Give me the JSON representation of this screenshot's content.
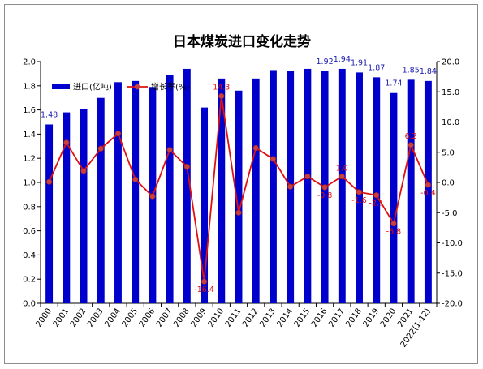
{
  "chart_data": {
    "type": "bar+line",
    "title": "日本煤炭进口变化走势",
    "categories": [
      "2000",
      "2001",
      "2002",
      "2003",
      "2004",
      "2005",
      "2006",
      "2007",
      "2008",
      "2009",
      "2010",
      "2011",
      "2012",
      "2013",
      "2014",
      "2015",
      "2016",
      "2017",
      "2018",
      "2019",
      "2020",
      "2021",
      "2022(1-12)"
    ],
    "series": [
      {
        "name": "进口(亿吨)",
        "type": "bar",
        "axis": "left",
        "color": "#0000cc",
        "values": [
          1.48,
          1.58,
          1.61,
          1.7,
          1.83,
          1.84,
          1.79,
          1.89,
          1.94,
          1.62,
          1.86,
          1.76,
          1.86,
          1.93,
          1.92,
          1.94,
          1.92,
          1.94,
          1.91,
          1.87,
          1.74,
          1.85,
          1.84
        ]
      },
      {
        "name": "增长率(%)",
        "type": "line",
        "axis": "right",
        "color": "#e01010",
        "values": [
          0.1,
          6.6,
          1.9,
          5.6,
          8.1,
          0.5,
          -2.3,
          5.4,
          2.6,
          -16.4,
          14.3,
          -5.0,
          5.7,
          3.9,
          -0.7,
          1.0,
          -0.8,
          1.0,
          -1.6,
          -2.1,
          -6.8,
          6.2,
          -0.4
        ]
      }
    ],
    "bar_labels": [
      {
        "index": 0,
        "text": "1.48"
      },
      {
        "index": 16,
        "text": "1.92"
      },
      {
        "index": 17,
        "text": "1.94"
      },
      {
        "index": 18,
        "text": "1.91"
      },
      {
        "index": 19,
        "text": "1.87"
      },
      {
        "index": 20,
        "text": "1.74"
      },
      {
        "index": 21,
        "text": "1.85"
      },
      {
        "index": 22,
        "text": "1.84"
      }
    ],
    "line_labels": [
      {
        "index": 9,
        "text": "-16.4"
      },
      {
        "index": 10,
        "text": "14.3"
      },
      {
        "index": 16,
        "text": "-0.8"
      },
      {
        "index": 17,
        "text": "1.0"
      },
      {
        "index": 18,
        "text": "-1.6"
      },
      {
        "index": 19,
        "text": "-2.1"
      },
      {
        "index": 20,
        "text": "-6.8"
      },
      {
        "index": 21,
        "text": "6.2"
      },
      {
        "index": 22,
        "text": "-0.4"
      }
    ],
    "left_axis": {
      "min": 0,
      "max": 2.0,
      "step": 0.2,
      "tick_labels": [
        "0.0",
        "0.2",
        "0.4",
        "0.6",
        "0.8",
        "1.0",
        "1.2",
        "1.4",
        "1.6",
        "1.8",
        "2.0"
      ]
    },
    "right_axis": {
      "min": -20,
      "max": 20,
      "step": 5,
      "tick_labels": [
        "-20.0",
        "-15.0",
        "-10.0",
        "-5.0",
        "0.0",
        "5.0",
        "10.0",
        "15.0",
        "20.0"
      ]
    },
    "grid": false,
    "legend_position": "top-left"
  }
}
